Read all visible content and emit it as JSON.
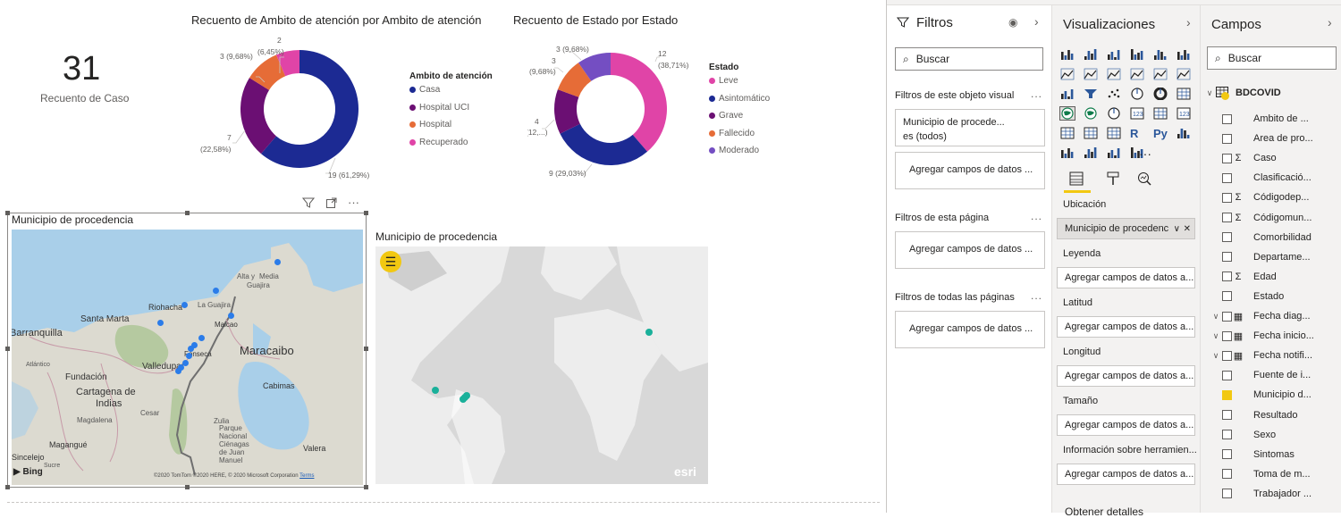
{
  "card": {
    "value": "31",
    "label": "Recuento de Caso"
  },
  "donut1": {
    "title": "Recuento de Ambito de atención por Ambito de atención",
    "labels": {
      "casa": "19 (61,29%)",
      "uci_a": "7",
      "uci_b": "(22,58%)",
      "hosp": "3 (9,68%)",
      "recup_a": "2",
      "recup_b": "(6,45%)"
    },
    "legend_title": "Ambito de atención"
  },
  "donut2": {
    "title": "Recuento de Estado por Estado",
    "labels": {
      "leve_a": "12",
      "leve_b": "(38,71%)",
      "asint": "9 (29,03%)",
      "grave_a": "4",
      "grave_b": "(12,...)",
      "fall_a": "3",
      "fall_b": "(9,68%)",
      "mod": "3 (9,68%)"
    },
    "legend_title": "Estado"
  },
  "chart_data": [
    {
      "type": "pie",
      "title": "Recuento de Ambito de atención por Ambito de atención",
      "categories": [
        "Casa",
        "Hospital UCI",
        "Hospital",
        "Recuperado"
      ],
      "values": [
        19,
        7,
        3,
        2
      ],
      "percent_labels": [
        "61,29%",
        "22,58%",
        "9,68%",
        "6,45%"
      ],
      "colors": [
        "#1c2a93",
        "#6b0f73",
        "#e66c37",
        "#e044a7"
      ],
      "legend_title": "Ambito de atención",
      "legend_position": "right"
    },
    {
      "type": "pie",
      "title": "Recuento de Estado por Estado",
      "categories": [
        "Leve",
        "Asintomático",
        "Grave",
        "Fallecido",
        "Moderado"
      ],
      "values": [
        12,
        9,
        4,
        3,
        3
      ],
      "percent_labels": [
        "38,71%",
        "29,03%",
        "12,...",
        "9,68%",
        "9,68%"
      ],
      "colors": [
        "#e044a7",
        "#1c2a93",
        "#6b0f73",
        "#e66c37",
        "#744ec2"
      ],
      "legend_title": "Estado",
      "legend_position": "right"
    }
  ],
  "map1": {
    "title": "Municipio de procedencia",
    "places": {
      "alta": "Alta y",
      "media": "Media",
      "guajira": "Guajira",
      "lagua": "La Guajira",
      "riohacha": "Riohacha",
      "santamarta": "Santa Marta",
      "barranquilla": "Barranquilla",
      "maicao": "Maicao",
      "maracaibo": "Maracaibo",
      "fonseca": "Fonseca",
      "valledupar": "Valledupar",
      "atlantico": "Atlántico",
      "fundacion": "Fundación",
      "cartagena": "Cartagena de",
      "indias": "Indias",
      "cabimas": "Cabimas",
      "magdalena": "Magdalena",
      "cesar": "Cesar",
      "zulia": "Zulia",
      "magangue": "Magangué",
      "parque": "Parque",
      "nacional": "Nacional",
      "cienagas": "Ciénagas",
      "dejuan": "de Juan",
      "manuel": "Manuel",
      "valera": "Valera",
      "sincelejo": "Sincelejo",
      "sucre": "Sucre"
    },
    "bing": "Bing",
    "attribution": "©2020 TomTom ©2020 HERE, © 2020 Microsoft Corporation",
    "terms": "Terms"
  },
  "map2": {
    "title": "Municipio de procedencia",
    "esri": "esri"
  },
  "filters": {
    "title": "Filtros",
    "search_placeholder": "Buscar",
    "visual_section": "Filtros de este objeto visual",
    "visual_filter_line1": "Municipio de procede...",
    "visual_filter_line2": "es (todos)",
    "add_fields": "Agregar campos de datos ...",
    "page_section": "Filtros de esta página",
    "all_pages_section": "Filtros de todas las páginas",
    "more": "..."
  },
  "viz": {
    "title": "Visualizaciones",
    "more_visuals": "···",
    "wells": [
      {
        "label": "Ubicación",
        "value": "Municipio de procedenc"
      },
      {
        "label": "Leyenda",
        "value": "Agregar campos de datos a..."
      },
      {
        "label": "Latitud",
        "value": "Agregar campos de datos a..."
      },
      {
        "label": "Longitud",
        "value": "Agregar campos de datos a..."
      },
      {
        "label": "Tamaño",
        "value": "Agregar campos de datos a..."
      },
      {
        "label": "Información sobre herramien...",
        "value": "Agregar campos de datos a..."
      }
    ],
    "drill_label": "Obtener detalles",
    "r_label": "R",
    "py_label": "Py"
  },
  "fields": {
    "title": "Campos",
    "search_placeholder": "Buscar",
    "table_name": "BDCOVID",
    "items": [
      {
        "name": "Ambito de ...",
        "sigma": "",
        "expand": "",
        "checked": false,
        "cal": false
      },
      {
        "name": "Area de pro...",
        "sigma": "",
        "expand": "",
        "checked": false,
        "cal": false
      },
      {
        "name": "Caso",
        "sigma": "Σ",
        "expand": "",
        "checked": false,
        "cal": false
      },
      {
        "name": "Clasificació...",
        "sigma": "",
        "expand": "",
        "checked": false,
        "cal": false
      },
      {
        "name": "Códigodep...",
        "sigma": "Σ",
        "expand": "",
        "checked": false,
        "cal": false
      },
      {
        "name": "Códigomun...",
        "sigma": "Σ",
        "expand": "",
        "checked": false,
        "cal": false
      },
      {
        "name": "Comorbilidad",
        "sigma": "",
        "expand": "",
        "checked": false,
        "cal": false
      },
      {
        "name": "Departame...",
        "sigma": "",
        "expand": "",
        "checked": false,
        "cal": false
      },
      {
        "name": "Edad",
        "sigma": "Σ",
        "expand": "",
        "checked": false,
        "cal": false
      },
      {
        "name": "Estado",
        "sigma": "",
        "expand": "",
        "checked": false,
        "cal": false
      },
      {
        "name": "Fecha diag...",
        "sigma": "",
        "expand": "∨",
        "checked": false,
        "cal": true
      },
      {
        "name": "Fecha inicio...",
        "sigma": "",
        "expand": "∨",
        "checked": false,
        "cal": true
      },
      {
        "name": "Fecha notifi...",
        "sigma": "",
        "expand": "∨",
        "checked": false,
        "cal": true
      },
      {
        "name": "Fuente de i...",
        "sigma": "",
        "expand": "",
        "checked": false,
        "cal": false
      },
      {
        "name": "Municipio d...",
        "sigma": "",
        "expand": "",
        "checked": true,
        "cal": false
      },
      {
        "name": "Resultado",
        "sigma": "",
        "expand": "",
        "checked": false,
        "cal": false
      },
      {
        "name": "Sexo",
        "sigma": "",
        "expand": "",
        "checked": false,
        "cal": false
      },
      {
        "name": "Sintomas",
        "sigma": "",
        "expand": "",
        "checked": false,
        "cal": false
      },
      {
        "name": "Toma de m...",
        "sigma": "",
        "expand": "",
        "checked": false,
        "cal": false
      },
      {
        "name": "Trabajador ...",
        "sigma": "",
        "expand": "",
        "checked": false,
        "cal": false
      }
    ]
  },
  "colors": {
    "accent": "#f2c811",
    "map_dot": "#2b7ce9",
    "map2_dot": "#1ab09a"
  }
}
